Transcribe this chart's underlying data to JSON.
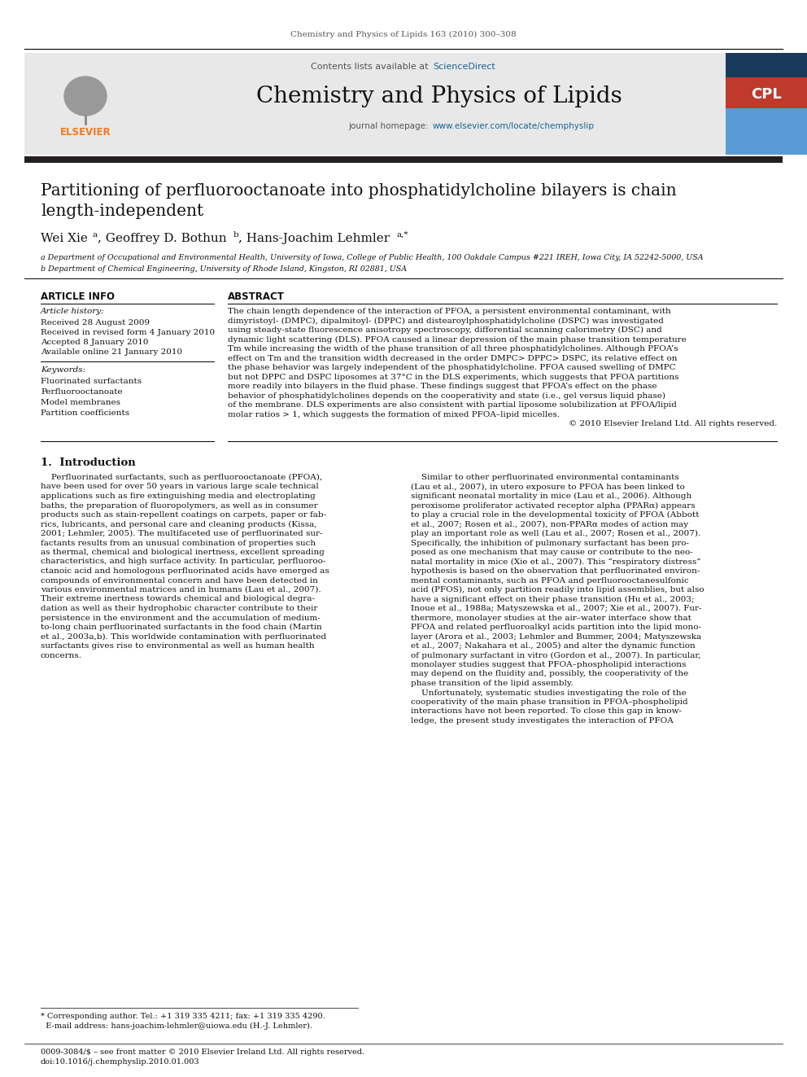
{
  "journal_header": "Chemistry and Physics of Lipids 163 (2010) 300–308",
  "contents_line": "Contents lists available at ScienceDirect",
  "sciencedirect_color": "#1a6496",
  "journal_title": "Chemistry and Physics of Lipids",
  "journal_homepage": "journal homepage: www.elsevier.com/locate/chemphyslip",
  "homepage_url_color": "#1a6496",
  "paper_title_line1": "Partitioning of perfluorooctanoate into phosphatidylcholine bilayers is chain",
  "paper_title_line2": "length-independent",
  "article_info_title": "ARTICLE INFO",
  "article_history_label": "Article history:",
  "received": "Received 28 August 2009",
  "received_revised": "Received in revised form 4 January 2010",
  "accepted": "Accepted 8 January 2010",
  "available": "Available online 21 January 2010",
  "keywords_label": "Keywords:",
  "keywords": [
    "Fluorinated surfactants",
    "Perfluorooctanoate",
    "Model membranes",
    "Partition coefficients"
  ],
  "abstract_title": "ABSTRACT",
  "abstract_lines": [
    "The chain length dependence of the interaction of PFOA, a persistent environmental contaminant, with",
    "dimyristoyl- (DMPC), dipalmitoyl- (DPPC) and distearoylphosphatidylcholine (DSPC) was investigated",
    "using steady-state fluorescence anisotropy spectroscopy, differential scanning calorimetry (DSC) and",
    "dynamic light scattering (DLS). PFOA caused a linear depression of the main phase transition temperature",
    "Tm while increasing the width of the phase transition of all three phosphatidylcholines. Although PFOA’s",
    "effect on Tm and the transition width decreased in the order DMPC> DPPC> DSPC, its relative effect on",
    "the phase behavior was largely independent of the phosphatidylcholine. PFOA caused swelling of DMPC",
    "but not DPPC and DSPC liposomes at 37°C in the DLS experiments, which suggests that PFOA partitions",
    "more readily into bilayers in the fluid phase. These findings suggest that PFOA’s effect on the phase",
    "behavior of phosphatidylcholines depends on the cooperativity and state (i.e., gel versus liquid phase)",
    "of the membrane. DLS experiments are also consistent with partial liposome solubilization at PFOA/lipid",
    "molar ratios > 1, which suggests the formation of mixed PFOA–lipid micelles.",
    "© 2010 Elsevier Ireland Ltd. All rights reserved."
  ],
  "section1_title": "1.  Introduction",
  "left_intro_lines": [
    "    Perfluorinated surfactants, such as perfluorooctanoate (PFOA),",
    "have been used for over 50 years in various large scale technical",
    "applications such as fire extinguishing media and electroplating",
    "baths, the preparation of fluoropolymers, as well as in consumer",
    "products such as stain-repellent coatings on carpets, paper or fab-",
    "rics, lubricants, and personal care and cleaning products (Kissa,",
    "2001; Lehmler, 2005). The multifaceted use of perfluorinated sur-",
    "factants results from an unusual combination of properties such",
    "as thermal, chemical and biological inertness, excellent spreading",
    "characteristics, and high surface activity. In particular, perfluoroo-",
    "ctanoic acid and homologous perfluorinated acids have emerged as",
    "compounds of environmental concern and have been detected in",
    "various environmental matrices and in humans (Lau et al., 2007).",
    "Their extreme inertness towards chemical and biological degra-",
    "dation as well as their hydrophobic character contribute to their",
    "persistence in the environment and the accumulation of medium-",
    "to-long chain perfluorinated surfactants in the food chain (Martin",
    "et al., 2003a,b). This worldwide contamination with perfluorinated",
    "surfactants gives rise to environmental as well as human health",
    "concerns."
  ],
  "right_intro_lines": [
    "    Similar to other perfluorinated environmental contaminants",
    "(Lau et al., 2007), in utero exposure to PFOA has been linked to",
    "significant neonatal mortality in mice (Lau et al., 2006). Although",
    "peroxisome proliferator activated receptor alpha (PPARα) appears",
    "to play a crucial role in the developmental toxicity of PFOA (Abbott",
    "et al., 2007; Rosen et al., 2007), non-PPARα modes of action may",
    "play an important role as well (Lau et al., 2007; Rosen et al., 2007).",
    "Specifically, the inhibition of pulmonary surfactant has been pro-",
    "posed as one mechanism that may cause or contribute to the neo-",
    "natal mortality in mice (Xie et al., 2007). This “respiratory distress”",
    "hypothesis is based on the observation that perfluorinated environ-",
    "mental contaminants, such as PFOA and perfluorooctanesulfonic",
    "acid (PFOS), not only partition readily into lipid assemblies, but also",
    "have a significant effect on their phase transition (Hu et al., 2003;",
    "Inoue et al., 1988a; Matyszewska et al., 2007; Xie et al., 2007). Fur-",
    "thermore, monolayer studies at the air–water interface show that",
    "PFOA and related perfluoroalkyl acids partition into the lipid mono-",
    "layer (Arora et al., 2003; Lehmler and Bummer, 2004; Matyszewska",
    "et al., 2007; Nakahara et al., 2005) and alter the dynamic function",
    "of pulmonary surfactant in vitro (Gordon et al., 2007). In particular,",
    "monolayer studies suggest that PFOA–phospholipid interactions",
    "may depend on the fluidity and, possibly, the cooperativity of the",
    "phase transition of the lipid assembly.",
    "    Unfortunately, systematic studies investigating the role of the",
    "cooperativity of the main phase transition in PFOA–phospholipid",
    "interactions have not been reported. To close this gap in know-",
    "ledge, the present study investigates the interaction of PFOA"
  ],
  "affil_a": "a Department of Occupational and Environmental Health, University of Iowa, College of Public Health, 100 Oakdale Campus #221 IREH, Iowa City, IA 52242-5000, USA",
  "affil_b": "b Department of Chemical Engineering, University of Rhode Island, Kingston, RI 02881, USA",
  "footnote1": "* Corresponding author. Tel.: +1 319 335 4211; fax: +1 319 335 4290.",
  "footnote2": "  E-mail address: hans-joachim-lehmler@uiowa.edu (H.-J. Lehmler).",
  "footer1": "0009-3084/$ – see front matter © 2010 Elsevier Ireland Ltd. All rights reserved.",
  "footer2": "doi:10.1016/j.chemphyslip.2010.01.003",
  "bg_color": "#ffffff",
  "banner_bg": "#e8e8e8",
  "elsevier_orange": "#f47920",
  "cpl_red": "#c0392b",
  "cpl_dark_blue": "#1a3a5c",
  "cpl_light_blue": "#5b9bd5",
  "text_dark": "#111111",
  "text_gray": "#555555",
  "link_blue": "#1a6496"
}
